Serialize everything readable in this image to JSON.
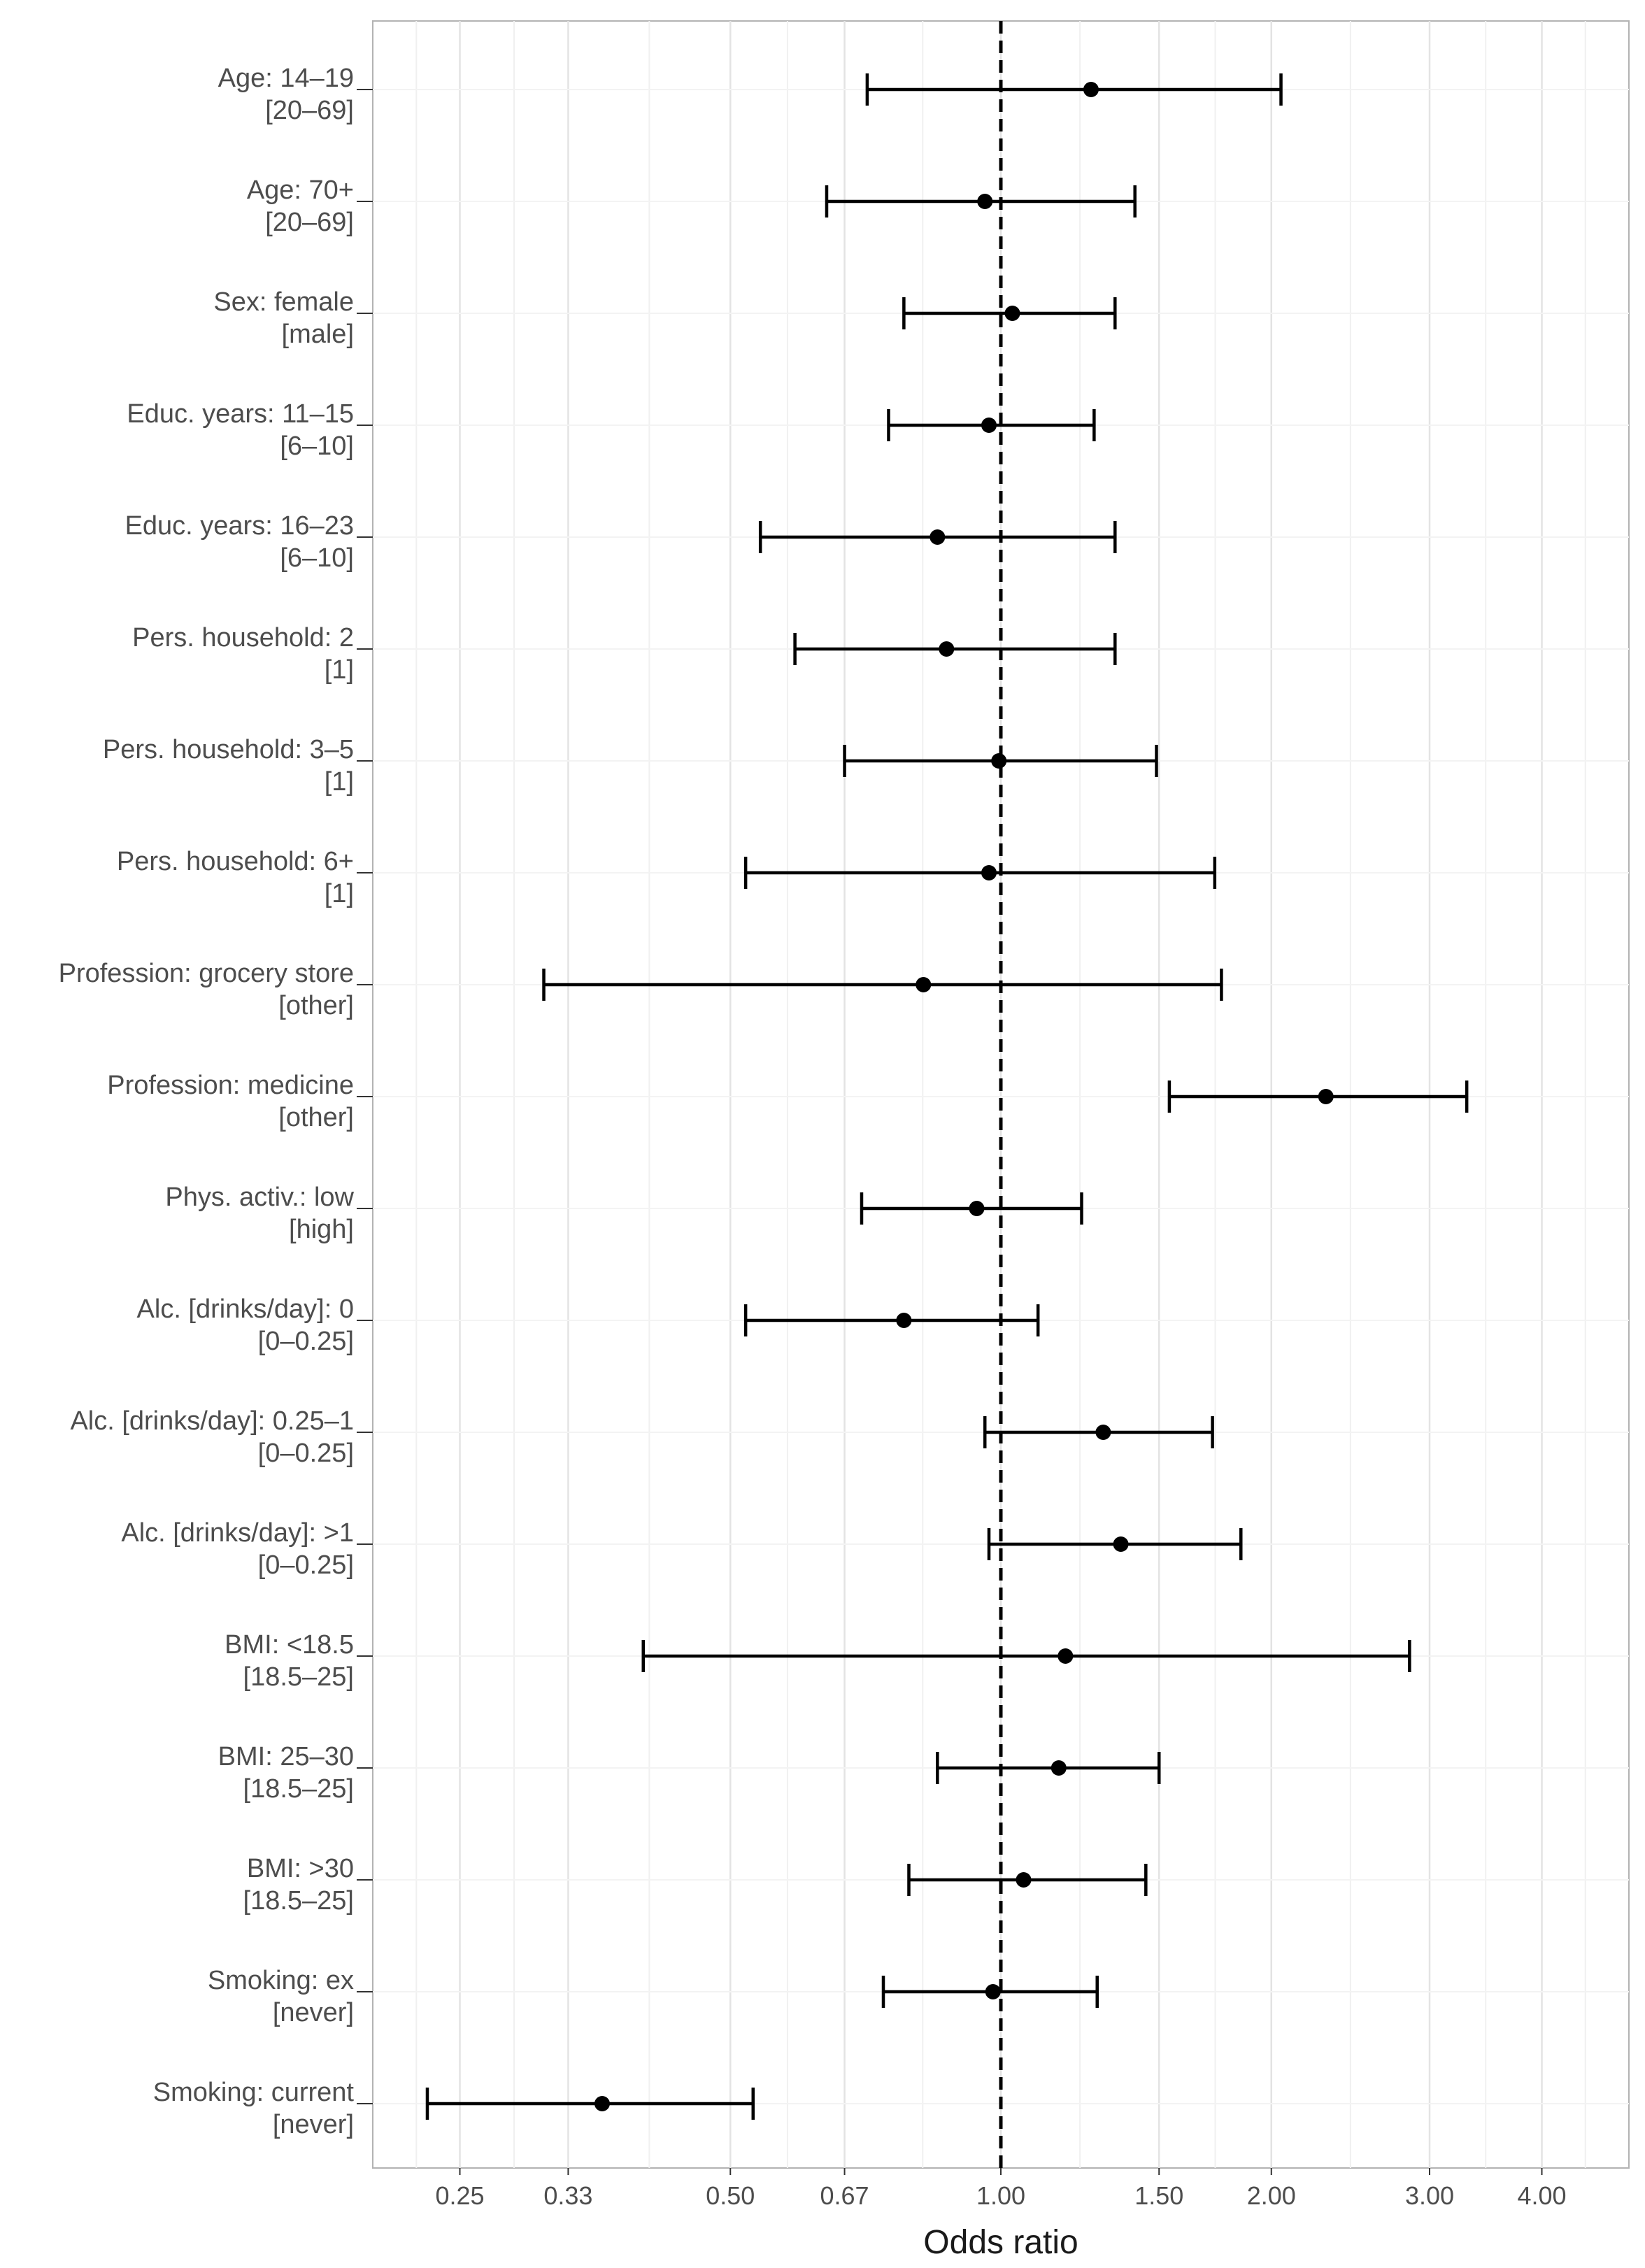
{
  "chart_data": {
    "type": "forest",
    "title": "",
    "xlabel": "Odds ratio",
    "ylabel": "",
    "x_scale": "log",
    "xlim": [
      0.2,
      5.0
    ],
    "reference_line": 1.0,
    "grid": true,
    "x_ticks": [
      {
        "value": 0.25,
        "label": "0.25"
      },
      {
        "value": 0.33,
        "label": "0.33"
      },
      {
        "value": 0.5,
        "label": "0.50"
      },
      {
        "value": 0.67,
        "label": "0.67"
      },
      {
        "value": 1.0,
        "label": "1.00"
      },
      {
        "value": 1.5,
        "label": "1.50"
      },
      {
        "value": 2.0,
        "label": "2.00"
      },
      {
        "value": 3.0,
        "label": "3.00"
      },
      {
        "value": 4.0,
        "label": "4.00"
      }
    ],
    "rows": [
      {
        "label": "Age: 14–19",
        "reference": "[20–69]",
        "or": 1.26,
        "lower": 0.71,
        "upper": 2.05
      },
      {
        "label": "Age: 70+",
        "reference": "[20–69]",
        "or": 0.96,
        "lower": 0.64,
        "upper": 1.41
      },
      {
        "label": "Sex: female",
        "reference": "[male]",
        "or": 1.03,
        "lower": 0.78,
        "upper": 1.34
      },
      {
        "label": "Educ. years: 11–15",
        "reference": "[6–10]",
        "or": 0.97,
        "lower": 0.75,
        "upper": 1.27
      },
      {
        "label": "Educ. years: 16–23",
        "reference": "[6–10]",
        "or": 0.85,
        "lower": 0.54,
        "upper": 1.34
      },
      {
        "label": "Pers. household: 2",
        "reference": "[1]",
        "or": 0.87,
        "lower": 0.59,
        "upper": 1.34
      },
      {
        "label": "Pers. household: 3–5",
        "reference": "[1]",
        "or": 0.995,
        "lower": 0.67,
        "upper": 1.49
      },
      {
        "label": "Pers. household: 6+",
        "reference": "[1]",
        "or": 0.97,
        "lower": 0.52,
        "upper": 1.73
      },
      {
        "label": "Profession: grocery store",
        "reference": "[other]",
        "or": 0.82,
        "lower": 0.31,
        "upper": 1.76
      },
      {
        "label": "Profession: medicine",
        "reference": "[other]",
        "or": 2.3,
        "lower": 1.54,
        "upper": 3.3
      },
      {
        "label": "Phys. activ.: low",
        "reference": "[high]",
        "or": 0.94,
        "lower": 0.7,
        "upper": 1.23
      },
      {
        "label": "Alc. [drinks/day]: 0",
        "reference": "[0–0.25]",
        "or": 0.78,
        "lower": 0.52,
        "upper": 1.1
      },
      {
        "label": "Alc. [drinks/day]: 0.25–1",
        "reference": "[0–0.25]",
        "or": 1.3,
        "lower": 0.96,
        "upper": 1.72
      },
      {
        "label": "Alc. [drinks/day]: >1",
        "reference": "[0–0.25]",
        "or": 1.36,
        "lower": 0.97,
        "upper": 1.85
      },
      {
        "label": "BMI: <18.5",
        "reference": "[18.5–25]",
        "or": 1.18,
        "lower": 0.4,
        "upper": 2.85
      },
      {
        "label": "BMI: 25–30",
        "reference": "[18.5–25]",
        "or": 1.16,
        "lower": 0.85,
        "upper": 1.5
      },
      {
        "label": "BMI: >30",
        "reference": "[18.5–25]",
        "or": 1.06,
        "lower": 0.79,
        "upper": 1.45
      },
      {
        "label": "Smoking: ex",
        "reference": "[never]",
        "or": 0.98,
        "lower": 0.74,
        "upper": 1.28
      },
      {
        "label": "Smoking: current",
        "reference": "[never]",
        "or": 0.36,
        "lower": 0.23,
        "upper": 0.53
      }
    ]
  }
}
